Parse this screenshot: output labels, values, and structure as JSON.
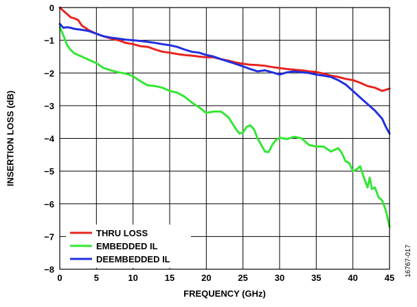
{
  "chart_data": {
    "type": "line",
    "xlabel": "FREQUENCY (GHz)",
    "ylabel": "INSERTION LOSS (dB)",
    "xlim": [
      0,
      45
    ],
    "ylim": [
      -8,
      0
    ],
    "x_ticks": [
      0,
      5,
      10,
      15,
      20,
      25,
      30,
      35,
      40,
      45
    ],
    "y_ticks": [
      0,
      -1,
      -2,
      -3,
      -4,
      -5,
      -6,
      -7,
      -8
    ],
    "x_tick_labels": [
      "0",
      "5",
      "10",
      "15",
      "20",
      "25",
      "30",
      "35",
      "40",
      "45"
    ],
    "y_tick_labels": [
      "0",
      "−1",
      "−2",
      "−3",
      "−4",
      "−5",
      "−6",
      "−7",
      "−8"
    ],
    "grid": true,
    "legend_position": "bottom-left",
    "figure_id": "16767-017",
    "series": [
      {
        "name": "THRU LOSS",
        "color": "#e8231f",
        "x": [
          0,
          0.5,
          1,
          1.5,
          2,
          2.5,
          3,
          3.5,
          4,
          5,
          6,
          7,
          8,
          9,
          10,
          11,
          12,
          13,
          14,
          15,
          16,
          17,
          18,
          19,
          20,
          21,
          22,
          23,
          24,
          25,
          26,
          27,
          28,
          29,
          30,
          31,
          32,
          33,
          34,
          35,
          36,
          37,
          38,
          39,
          40,
          41,
          42,
          43,
          44,
          45
        ],
        "y": [
          0,
          -0.1,
          -0.2,
          -0.3,
          -0.33,
          -0.38,
          -0.55,
          -0.62,
          -0.7,
          -0.8,
          -0.88,
          -0.95,
          -1.0,
          -1.08,
          -1.12,
          -1.18,
          -1.2,
          -1.28,
          -1.35,
          -1.38,
          -1.42,
          -1.45,
          -1.47,
          -1.5,
          -1.52,
          -1.52,
          -1.58,
          -1.62,
          -1.68,
          -1.72,
          -1.75,
          -1.76,
          -1.78,
          -1.82,
          -1.85,
          -1.88,
          -1.9,
          -1.92,
          -1.95,
          -1.97,
          -2.02,
          -2.08,
          -2.12,
          -2.18,
          -2.22,
          -2.3,
          -2.4,
          -2.45,
          -2.55,
          -2.48
        ]
      },
      {
        "name": "EMBEDDED IL",
        "color": "#33e633",
        "x": [
          0,
          0.5,
          1,
          1.5,
          2,
          3,
          4,
          5,
          6,
          7,
          8,
          9,
          10,
          11,
          12,
          13,
          14,
          15,
          16,
          17,
          18,
          19,
          20,
          20.5,
          21,
          22,
          23,
          24,
          24.5,
          25,
          25.5,
          26,
          26.5,
          27,
          28,
          28.5,
          29,
          29.5,
          30,
          31,
          32,
          33,
          34,
          35,
          36,
          37,
          38,
          38.5,
          39,
          39.5,
          40,
          40.5,
          41,
          41.5,
          42,
          42.3,
          42.6,
          43,
          43.5,
          44,
          44.5,
          45
        ],
        "y": [
          -0.6,
          -0.85,
          -1.15,
          -1.3,
          -1.4,
          -1.5,
          -1.6,
          -1.7,
          -1.85,
          -1.92,
          -1.98,
          -2.02,
          -2.1,
          -2.25,
          -2.38,
          -2.4,
          -2.45,
          -2.55,
          -2.6,
          -2.72,
          -2.9,
          -3.05,
          -3.22,
          -3.2,
          -3.18,
          -3.18,
          -3.35,
          -3.7,
          -3.85,
          -3.82,
          -3.65,
          -3.6,
          -3.72,
          -4.0,
          -4.4,
          -4.42,
          -4.2,
          -4.05,
          -3.98,
          -4.02,
          -3.95,
          -4.0,
          -4.2,
          -4.25,
          -4.25,
          -4.4,
          -4.3,
          -4.45,
          -4.7,
          -4.75,
          -5.0,
          -4.95,
          -4.85,
          -5.2,
          -5.5,
          -5.2,
          -5.55,
          -5.5,
          -5.8,
          -5.9,
          -6.2,
          -6.7
        ]
      },
      {
        "name": "DEEMBEDDED IL",
        "color": "#1f2fe0",
        "x": [
          0,
          0.5,
          1,
          1.5,
          2,
          3,
          4,
          5,
          6,
          7,
          8,
          9,
          10,
          11,
          12,
          13,
          14,
          15,
          16,
          17,
          18,
          19,
          20,
          21,
          22,
          23,
          24,
          25,
          26,
          27,
          28,
          29,
          30,
          31,
          32,
          33,
          34,
          35,
          36,
          37,
          38,
          39,
          40,
          41,
          42,
          43,
          44,
          44.5,
          45
        ],
        "y": [
          -0.5,
          -0.62,
          -0.6,
          -0.62,
          -0.65,
          -0.68,
          -0.72,
          -0.8,
          -0.88,
          -0.92,
          -0.95,
          -0.98,
          -1.0,
          -1.02,
          -1.05,
          -1.08,
          -1.12,
          -1.15,
          -1.2,
          -1.28,
          -1.35,
          -1.38,
          -1.45,
          -1.5,
          -1.58,
          -1.65,
          -1.72,
          -1.8,
          -1.88,
          -1.95,
          -1.92,
          -1.98,
          -2.05,
          -1.98,
          -1.95,
          -1.98,
          -2.0,
          -2.05,
          -2.08,
          -2.12,
          -2.22,
          -2.35,
          -2.55,
          -2.75,
          -2.95,
          -3.15,
          -3.4,
          -3.65,
          -3.85
        ]
      }
    ]
  }
}
